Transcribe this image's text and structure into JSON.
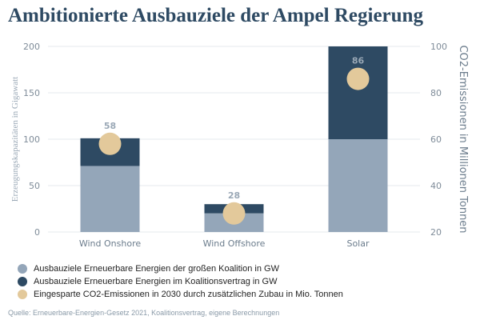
{
  "title": "Ambitionierte Ausbauziele der Ampel Regierung",
  "source": "Quelle: Erneuerbare-Energien-Gesetz 2021, Koalitionsvertrag, eigene Berechnungen",
  "colors": {
    "base": "#94a6b9",
    "add": "#2e4a63",
    "co2": "#e3c99b"
  },
  "chart_data": {
    "type": "bar",
    "stacked": true,
    "categories": [
      "Wind Onshore",
      "Wind Offshore",
      "Solar"
    ],
    "series": [
      {
        "name": "Ausbauziele Erneuerbare Energien der großen Koalition in GW",
        "values": [
          71,
          20,
          100
        ],
        "color": "#94a6b9"
      },
      {
        "name": "Ausbauziele Erneuerbare Energien im Koalitionsvertrag in GW",
        "values": [
          101,
          30,
          200
        ],
        "color": "#2e4a63",
        "note": "stack top"
      },
      {
        "name": "Eingesparte CO2-Emissionen in 2030 durch zusätzlichen Zubau in Mio. Tonnen",
        "values": [
          58,
          28,
          86
        ],
        "color": "#e3c99b",
        "axis": "right",
        "marker": "circle"
      }
    ],
    "ylabel": "Erzeugungskapazitäten in Gigawatt",
    "ylabel_right": "CO2-Emissionen in Millionen Tonnen",
    "ylim": [
      0,
      200
    ],
    "yticks": [
      0,
      50,
      100,
      150,
      200
    ],
    "ylim_right": [
      20,
      100
    ],
    "yticks_right": [
      20,
      40,
      60,
      80,
      100
    ],
    "grid": true,
    "legend_position": "bottom-left"
  }
}
